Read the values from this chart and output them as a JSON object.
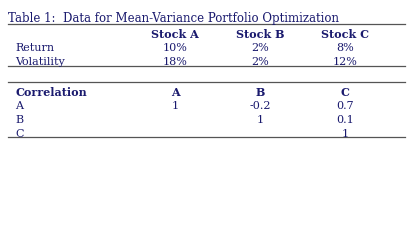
{
  "title": "Table 1:  Data for Mean-Variance Portfolio Optimization",
  "title_color": "#1a1a6e",
  "line_color": "#555555",
  "text_color": "#1a1a6e",
  "background_color": "#ffffff",
  "top_table": {
    "col_headers": [
      "",
      "Stock A",
      "Stock B",
      "Stock C"
    ],
    "rows": [
      [
        "Return",
        "10%",
        "2%",
        "8%"
      ],
      [
        "Volatility",
        "18%",
        "2%",
        "12%"
      ]
    ]
  },
  "corr_table": {
    "col_headers": [
      "Correlation",
      "A",
      "B",
      "C"
    ],
    "rows": [
      [
        "A",
        "1",
        "-0.2",
        "0.7"
      ],
      [
        "B",
        "",
        "1",
        "0.1"
      ],
      [
        "C",
        "",
        "",
        "1"
      ]
    ]
  },
  "figsize": [
    4.13,
    2.34
  ],
  "dpi": 100
}
